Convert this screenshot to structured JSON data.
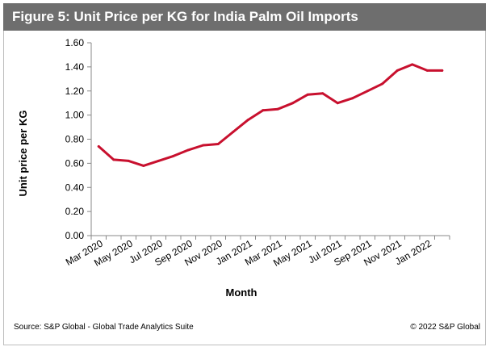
{
  "header": {
    "title": "Figure 5: Unit Price per KG for India Palm Oil Imports"
  },
  "footer": {
    "source": "Source: S&P Global - Global Trade Analytics Suite",
    "copyright": "© 2022 S&P Global"
  },
  "colors": {
    "line": "#c8102e",
    "header_bg": "#6e6e6e",
    "axis": "#888888"
  },
  "chart_data": {
    "type": "line",
    "title": "Figure 5: Unit Price per KG for India Palm Oil Imports",
    "xlabel": "Month",
    "ylabel": "Unit price per KG",
    "ylim": [
      0,
      1.6
    ],
    "yticks": [
      "0.00",
      "0.20",
      "0.40",
      "0.60",
      "0.80",
      "1.00",
      "1.20",
      "1.40",
      "1.60"
    ],
    "ytick_values": [
      0,
      0.2,
      0.4,
      0.6,
      0.8,
      1.0,
      1.2,
      1.4,
      1.6
    ],
    "grid": false,
    "x": [
      "Mar 2020",
      "Apr 2020",
      "May 2020",
      "Jun 2020",
      "Jul 2020",
      "Aug 2020",
      "Sep 2020",
      "Oct 2020",
      "Nov 2020",
      "Dec 2020",
      "Jan 2021",
      "Feb 2021",
      "Mar 2021",
      "Apr 2021",
      "May 2021",
      "Jun 2021",
      "Jul 2021",
      "Aug 2021",
      "Sep 2021",
      "Oct 2021",
      "Nov 2021",
      "Dec 2021",
      "Jan 2022",
      "Feb 2022"
    ],
    "x_tick_labels": [
      "Mar 2020",
      "May 2020",
      "Jul 2020",
      "Sep 2020",
      "Nov 2020",
      "Jan 2021",
      "Mar 2021",
      "May 2021",
      "Jul 2021",
      "Sep 2021",
      "Nov 2021",
      "Jan 2022"
    ],
    "series": [
      {
        "name": "Unit price per KG",
        "values": [
          0.74,
          0.63,
          0.62,
          0.58,
          0.62,
          0.66,
          0.71,
          0.75,
          0.76,
          0.86,
          0.96,
          1.04,
          1.05,
          1.1,
          1.17,
          1.18,
          1.1,
          1.14,
          1.2,
          1.26,
          1.37,
          1.42,
          1.37,
          1.37
        ]
      }
    ]
  }
}
